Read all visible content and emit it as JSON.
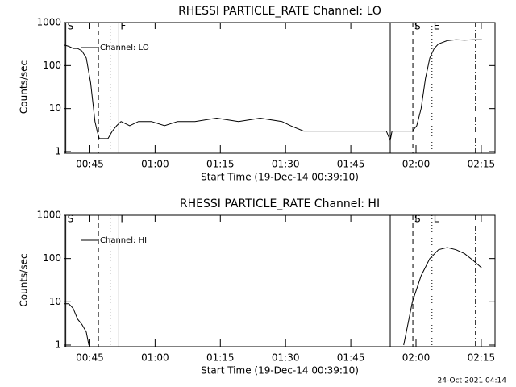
{
  "chart_data": [
    {
      "type": "line",
      "title": "RHESSI PARTICLE_RATE Channel: LO",
      "xlabel": "Start Time (19-Dec-14 00:39:10)",
      "ylabel": "Counts/sec",
      "log_y": true,
      "ylim": [
        1,
        1000
      ],
      "yticks": [
        1,
        10,
        100,
        1000
      ],
      "xlim": [
        0,
        99
      ],
      "xticks": [
        {
          "value": 5.833,
          "label": "00:45"
        },
        {
          "value": 20.833,
          "label": "01:00"
        },
        {
          "value": 35.833,
          "label": "01:15"
        },
        {
          "value": 50.833,
          "label": "01:30"
        },
        {
          "value": 65.833,
          "label": "01:45"
        },
        {
          "value": 80.833,
          "label": "02:00"
        },
        {
          "value": 95.833,
          "label": "02:15"
        }
      ],
      "markers": [
        {
          "x": 0.3,
          "style": "solid",
          "label": "S"
        },
        {
          "x": 7.8,
          "style": "dashed"
        },
        {
          "x": 10.5,
          "style": "dotted"
        },
        {
          "x": 12.5,
          "style": "solid",
          "label": "F"
        },
        {
          "x": 74.9,
          "style": "solid"
        },
        {
          "x": 80.1,
          "style": "dashed",
          "label": "S"
        },
        {
          "x": 84.5,
          "style": "dotted",
          "label": "E"
        },
        {
          "x": 94.5,
          "style": "dashdot"
        }
      ],
      "x": [
        0,
        1,
        2,
        3,
        4,
        5,
        6,
        7,
        7.5,
        8,
        9,
        10,
        11,
        12,
        13,
        15,
        17,
        20,
        23,
        26,
        30,
        35,
        40,
        45,
        50,
        52,
        55,
        58,
        62,
        66,
        70,
        74,
        74.9,
        75.3,
        76,
        80,
        81,
        82,
        83,
        84,
        85,
        86,
        88,
        90,
        92,
        94,
        96
      ],
      "series": [
        {
          "name": "Channel: LO",
          "color": "#000000",
          "values": [
            300,
            280,
            250,
            250,
            220,
            150,
            40,
            5,
            3,
            2,
            2,
            2,
            3,
            4,
            5,
            4,
            5,
            5,
            4,
            5,
            5,
            6,
            5,
            6,
            5,
            4,
            3,
            3,
            3,
            3,
            3,
            3,
            1.8,
            3,
            3,
            3,
            4,
            10,
            50,
            150,
            250,
            320,
            380,
            400,
            390,
            400,
            400
          ]
        }
      ]
    },
    {
      "type": "line",
      "title": "RHESSI PARTICLE_RATE Channel: HI",
      "xlabel": "Start Time (19-Dec-14 00:39:10)",
      "ylabel": "Counts/sec",
      "log_y": true,
      "ylim": [
        1,
        1000
      ],
      "yticks": [
        1,
        10,
        100,
        1000
      ],
      "xlim": [
        0,
        99
      ],
      "xticks": [
        {
          "value": 5.833,
          "label": "00:45"
        },
        {
          "value": 20.833,
          "label": "01:00"
        },
        {
          "value": 35.833,
          "label": "01:15"
        },
        {
          "value": 50.833,
          "label": "01:30"
        },
        {
          "value": 65.833,
          "label": "01:45"
        },
        {
          "value": 80.833,
          "label": "02:00"
        },
        {
          "value": 95.833,
          "label": "02:15"
        }
      ],
      "markers": [
        {
          "x": 0.3,
          "style": "solid",
          "label": "S"
        },
        {
          "x": 7.8,
          "style": "dashed"
        },
        {
          "x": 10.5,
          "style": "dotted"
        },
        {
          "x": 12.5,
          "style": "solid",
          "label": "F"
        },
        {
          "x": 74.9,
          "style": "solid"
        },
        {
          "x": 80.1,
          "style": "dashed",
          "label": "S"
        },
        {
          "x": 84.5,
          "style": "dotted",
          "label": "E"
        },
        {
          "x": 94.5,
          "style": "dashdot"
        }
      ],
      "x": [
        0,
        1,
        2,
        3,
        4,
        5,
        5.6,
        6,
        78,
        80,
        82,
        84,
        86,
        88,
        90,
        92,
        94,
        96
      ],
      "series": [
        {
          "name": "Channel: HI",
          "color": "#000000",
          "values": [
            9,
            9,
            7,
            4,
            3,
            2,
            1,
            null,
            1,
            10,
            40,
            100,
            160,
            180,
            160,
            130,
            90,
            60
          ]
        }
      ]
    }
  ],
  "footer": "24-Oct-2021 04:14"
}
